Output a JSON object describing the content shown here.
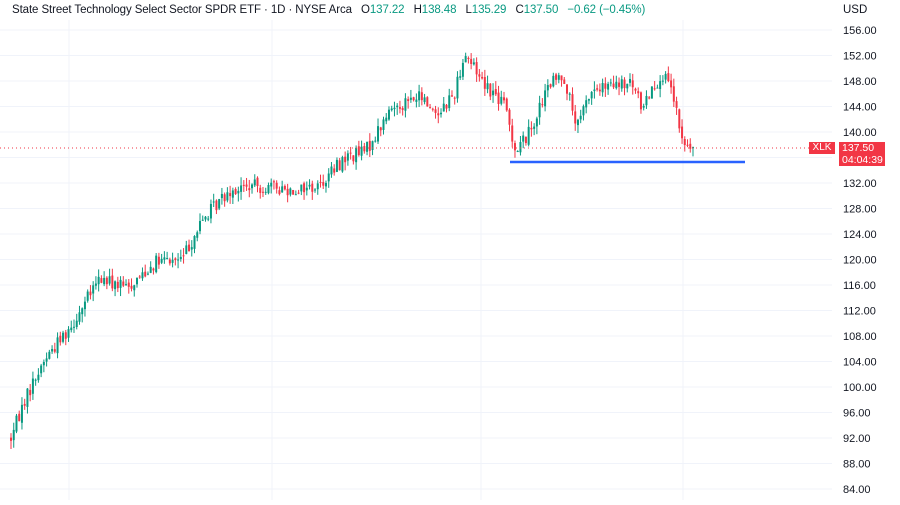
{
  "legend": {
    "title": "State Street Technology Select Sector SPDR ETF · 1D · NYSE Arca",
    "o_label": "O",
    "o_value": "137.22",
    "h_label": "H",
    "h_value": "138.48",
    "l_label": "L",
    "l_value": "135.29",
    "c_label": "C",
    "c_value": "137.50",
    "change": "−0.62 (−0.45%)"
  },
  "currency": "USD",
  "price_tag": {
    "symbol": "XLK",
    "price": "137.50",
    "countdown": "04:04:39"
  },
  "colors": {
    "up": "#089981",
    "down": "#f23645",
    "support_line": "#2962ff",
    "grid": "#f0f3fa"
  },
  "chart_data": {
    "type": "candlestick",
    "ylim": [
      84,
      157
    ],
    "y_ticks": [
      "84.00",
      "88.00",
      "92.00",
      "96.00",
      "100.00",
      "104.00",
      "108.00",
      "112.00",
      "116.00",
      "120.00",
      "124.00",
      "128.00",
      "132.00",
      "136.00",
      "140.00",
      "144.00",
      "148.00",
      "152.00",
      "156.00"
    ],
    "last_price": 137.5,
    "support_level": 135.3,
    "trend": [
      [
        0,
        92
      ],
      [
        0.02,
        98
      ],
      [
        0.05,
        104.5
      ],
      [
        0.09,
        110
      ],
      [
        0.13,
        117
      ],
      [
        0.17,
        115.5
      ],
      [
        0.21,
        119.5
      ],
      [
        0.25,
        120
      ],
      [
        0.28,
        126
      ],
      [
        0.32,
        131
      ],
      [
        0.36,
        131.5
      ],
      [
        0.41,
        131
      ],
      [
        0.45,
        131.5
      ],
      [
        0.49,
        136
      ],
      [
        0.52,
        137
      ],
      [
        0.56,
        144
      ],
      [
        0.6,
        145.5
      ],
      [
        0.625,
        143
      ],
      [
        0.65,
        146
      ],
      [
        0.665,
        152.5
      ],
      [
        0.68,
        150
      ],
      [
        0.7,
        147
      ],
      [
        0.725,
        144
      ],
      [
        0.74,
        137
      ],
      [
        0.76,
        140
      ],
      [
        0.79,
        147.5
      ],
      [
        0.81,
        149
      ],
      [
        0.83,
        140.5
      ],
      [
        0.85,
        146.5
      ],
      [
        0.88,
        147
      ],
      [
        0.91,
        147.5
      ],
      [
        0.925,
        144
      ],
      [
        0.94,
        147
      ],
      [
        0.955,
        149
      ],
      [
        0.97,
        146
      ],
      [
        0.985,
        138
      ],
      [
        1.0,
        137.5
      ]
    ]
  }
}
